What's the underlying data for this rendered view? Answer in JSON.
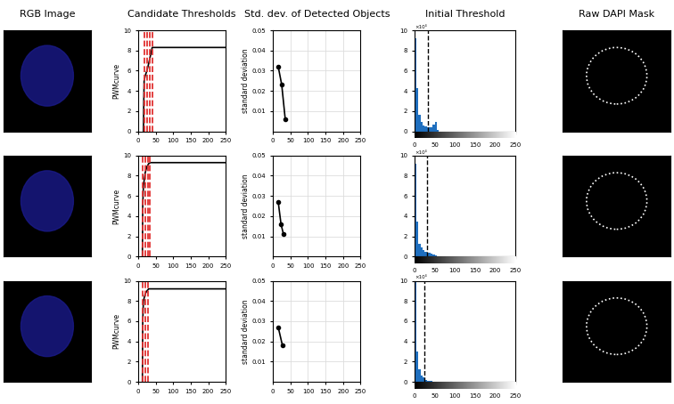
{
  "column_titles": [
    "RGB Image",
    "Candidate Thresholds",
    "Std. dev. of Detected Objects",
    "Initial Threshold",
    "Raw DAPI Mask"
  ],
  "chart_data": [
    {
      "type": "line",
      "ylabel": "PWMcurve",
      "x": [
        15,
        16,
        17,
        20,
        25,
        30,
        35,
        40,
        250
      ],
      "values": [
        0,
        3,
        5,
        5.5,
        6,
        6.7,
        7.5,
        8.3,
        8.3
      ],
      "color": "#000000",
      "candidate_thresholds": {
        "values": [
          17,
          25,
          33,
          40
        ],
        "color": "#e03030",
        "line_style": "dashed"
      },
      "xlim": [
        0,
        250
      ],
      "xticks": [
        0,
        50,
        100,
        150,
        200,
        250
      ],
      "ylim": [
        0,
        10
      ],
      "yticks": [
        0,
        2,
        4,
        6,
        8,
        10
      ],
      "grid": false
    },
    {
      "type": "line",
      "ylabel": "standard deviation",
      "x": [
        15,
        25,
        35
      ],
      "values": [
        0.032,
        0.023,
        0.006
      ],
      "color": "#000000",
      "marker": "o",
      "xlim": [
        0,
        250
      ],
      "xticks": [
        0,
        50,
        100,
        150,
        200,
        250
      ],
      "ylim": [
        0,
        0.05
      ],
      "yticks": [
        0.01,
        0.02,
        0.03,
        0.04,
        0.05
      ],
      "grid": true
    },
    {
      "type": "histogram",
      "annotation": "×10⁴",
      "bins": [
        0,
        5,
        10,
        15,
        20,
        25,
        30,
        35,
        40,
        45,
        50,
        55,
        60
      ],
      "counts": [
        9.2,
        4.3,
        1.6,
        0.9,
        0.6,
        0.5,
        0.4,
        0.4,
        0.4,
        0.7,
        0.9,
        0.1
      ],
      "color": "#1f6fbf",
      "threshold": {
        "value": 33,
        "color": "#000000",
        "line_style": "dashed"
      },
      "xlim": [
        0,
        250
      ],
      "xticks": [
        0,
        50,
        100,
        150,
        200,
        250
      ],
      "ylim": [
        0,
        10
      ],
      "yticks": [
        0,
        2,
        4,
        6,
        8,
        10
      ],
      "grid": false
    },
    {
      "type": "line",
      "ylabel": "PWMcurve",
      "x": [
        12,
        13,
        15,
        20,
        25,
        30,
        35,
        250
      ],
      "values": [
        0,
        5,
        7,
        8.3,
        8.9,
        9.2,
        9.3,
        9.3
      ],
      "color": "#000000",
      "candidate_thresholds": {
        "values": [
          13,
          20,
          27,
          33
        ],
        "color": "#e03030",
        "line_style": "dashed"
      },
      "xlim": [
        0,
        250
      ],
      "xticks": [
        0,
        50,
        100,
        150,
        200,
        250
      ],
      "ylim": [
        0,
        10
      ],
      "yticks": [
        0,
        2,
        4,
        6,
        8,
        10
      ],
      "grid": false
    },
    {
      "type": "line",
      "ylabel": "standard deviation",
      "x": [
        15,
        23,
        30
      ],
      "values": [
        0.027,
        0.016,
        0.011
      ],
      "color": "#000000",
      "marker": "o",
      "xlim": [
        0,
        250
      ],
      "xticks": [
        0,
        50,
        100,
        150,
        200,
        250
      ],
      "ylim": [
        0,
        0.05
      ],
      "yticks": [
        0.01,
        0.02,
        0.03,
        0.04,
        0.05
      ],
      "grid": true
    },
    {
      "type": "histogram",
      "annotation": "×10⁴",
      "bins": [
        0,
        5,
        10,
        15,
        20,
        25,
        30,
        35,
        40,
        45,
        50,
        55,
        60
      ],
      "counts": [
        9.2,
        3.5,
        1.3,
        0.9,
        0.6,
        0.5,
        0.4,
        0.4,
        0.3,
        0.2,
        0.1,
        0.05
      ],
      "color": "#1f6fbf",
      "threshold": {
        "value": 30,
        "color": "#000000",
        "line_style": "dashed"
      },
      "xlim": [
        0,
        250
      ],
      "xticks": [
        0,
        50,
        100,
        150,
        200,
        250
      ],
      "ylim": [
        0,
        10
      ],
      "yticks": [
        0,
        2,
        4,
        6,
        8,
        10
      ],
      "grid": false
    },
    {
      "type": "line",
      "ylabel": "PWMcurve",
      "x": [
        12,
        13,
        15,
        20,
        25,
        30,
        250
      ],
      "values": [
        0,
        6,
        8,
        8.7,
        9.0,
        9.2,
        9.2
      ],
      "color": "#000000",
      "candidate_thresholds": {
        "values": [
          13,
          20,
          27
        ],
        "color": "#e03030",
        "line_style": "dashed"
      },
      "xlim": [
        0,
        250
      ],
      "xticks": [
        0,
        50,
        100,
        150,
        200,
        250
      ],
      "ylim": [
        0,
        10
      ],
      "yticks": [
        0,
        2,
        4,
        6,
        8,
        10
      ],
      "grid": false
    },
    {
      "type": "line",
      "ylabel": "standard deviation",
      "x": [
        15,
        27
      ],
      "values": [
        0.027,
        0.018
      ],
      "color": "#000000",
      "marker": "o",
      "xlim": [
        0,
        250
      ],
      "xticks": [
        0,
        50,
        100,
        150,
        200,
        250
      ],
      "ylim": [
        0,
        0.05
      ],
      "yticks": [
        0.01,
        0.02,
        0.03,
        0.04,
        0.05
      ],
      "grid": true
    },
    {
      "type": "histogram",
      "annotation": "×10⁴",
      "bins": [
        0,
        5,
        10,
        15,
        20,
        25,
        30,
        35,
        40,
        45,
        50,
        55,
        60
      ],
      "counts": [
        10,
        3.0,
        1.2,
        0.6,
        0.4,
        0.2,
        0.1,
        0.1,
        0.05,
        0.03,
        0.02,
        0.01
      ],
      "color": "#1f6fbf",
      "threshold": {
        "value": 25,
        "color": "#000000",
        "line_style": "dashed"
      },
      "xlim": [
        0,
        250
      ],
      "xticks": [
        0,
        50,
        100,
        150,
        200,
        250
      ],
      "ylim": [
        0,
        10
      ],
      "yticks": [
        0,
        2,
        4,
        6,
        8,
        10
      ],
      "grid": false
    }
  ]
}
